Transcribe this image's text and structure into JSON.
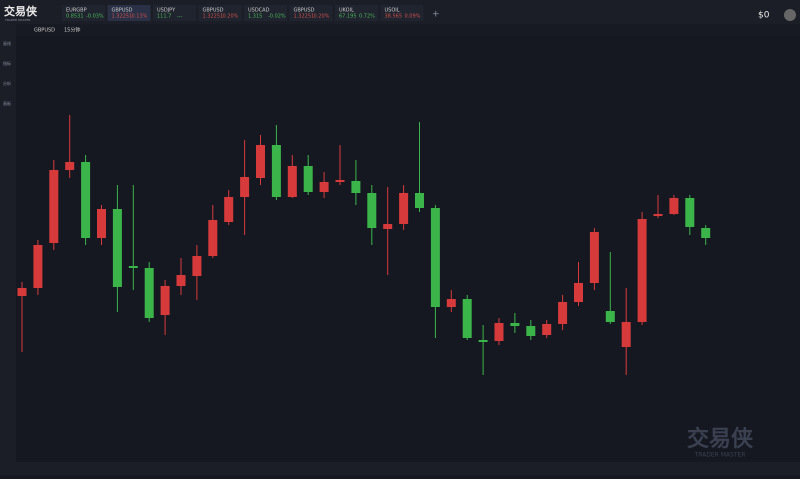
{
  "header": {
    "logo": "交易侠",
    "logo_sub": "TRADER MASTER",
    "balance": "$0",
    "tickers": [
      {
        "symbol": "EURGBP",
        "price": "0.8531",
        "change": "-0.03%"
      },
      {
        "symbol": "GBPUSD",
        "price": "1.32251",
        "change": "0.13%"
      },
      {
        "symbol": "USDJPY",
        "price": "111.7",
        "change": "---"
      },
      {
        "symbol": "GBPUSD",
        "price": "1.32251",
        "change": "0.20%"
      },
      {
        "symbol": "USDCAD",
        "price": "1.315",
        "change": "-0.02%"
      },
      {
        "symbol": "GBPUSD",
        "price": "1.32251",
        "change": "0.20%"
      },
      {
        "symbol": "UKOIL",
        "price": "67.195",
        "change": "0.72%"
      },
      {
        "symbol": "USOIL",
        "price": "38.565",
        "change": "0.09%"
      }
    ]
  },
  "sidebar": [
    "画线",
    "指标",
    "分析",
    "画板"
  ],
  "chart_data": {
    "type": "candlestick",
    "symbol": "GBPUSD",
    "timeframe": "15分钟",
    "up_color": "#d63a3a",
    "down_color": "#3bb54a",
    "ylim": [
      1.3215,
      1.33
    ],
    "open": [
      1.32468,
      1.32484,
      1.32574,
      1.3272,
      1.32736,
      1.32584,
      1.32642,
      1.32528,
      1.32524,
      1.3243,
      1.32488,
      1.32508,
      1.32548,
      1.32616,
      1.32666,
      1.32704,
      1.3277,
      1.32666,
      1.32728,
      1.32676,
      1.32696,
      1.32698,
      1.32674,
      1.32602,
      1.32612,
      1.32674,
      1.32644,
      1.32446,
      1.32462,
      1.3238,
      1.32378,
      1.32414,
      1.32408,
      1.3239,
      1.32412,
      1.32456,
      1.32494,
      1.32438,
      1.32366,
      1.32416,
      1.32628,
      1.32632,
      1.32664,
      1.32604
    ],
    "high": [
      1.32496,
      1.3258,
      1.3274,
      1.3283,
      1.3275,
      1.3265,
      1.3269,
      1.3269,
      1.32536,
      1.325,
      1.32544,
      1.3257,
      1.3265,
      1.3268,
      1.3278,
      1.3279,
      1.3281,
      1.3275,
      1.3275,
      1.32716,
      1.3277,
      1.3274,
      1.3269,
      1.32686,
      1.3269,
      1.32816,
      1.3265,
      1.3248,
      1.3247,
      1.3241,
      1.32424,
      1.32434,
      1.3242,
      1.3242,
      1.3247,
      1.32536,
      1.32604,
      1.32556,
      1.32484,
      1.32636,
      1.3267,
      1.3267,
      1.3267,
      1.3261
    ],
    "low": [
      1.32356,
      1.3247,
      1.3256,
      1.32704,
      1.3257,
      1.3257,
      1.32436,
      1.3248,
      1.32416,
      1.3239,
      1.3247,
      1.3246,
      1.32544,
      1.3261,
      1.3259,
      1.3269,
      1.3266,
      1.32664,
      1.3267,
      1.32664,
      1.3269,
      1.3265,
      1.3257,
      1.3251,
      1.326,
      1.32636,
      1.32384,
      1.32436,
      1.3238,
      1.3231,
      1.3237,
      1.32394,
      1.3238,
      1.32384,
      1.324,
      1.32448,
      1.3248,
      1.32412,
      1.3231,
      1.3241,
      1.32624,
      1.3263,
      1.3259,
      1.3257
    ],
    "close": [
      1.32484,
      1.3257,
      1.3272,
      1.32736,
      1.32584,
      1.32642,
      1.32486,
      1.32524,
      1.32424,
      1.32488,
      1.3251,
      1.32548,
      1.3262,
      1.32666,
      1.32706,
      1.3277,
      1.32666,
      1.32728,
      1.32676,
      1.32696,
      1.327,
      1.32674,
      1.32604,
      1.32612,
      1.32674,
      1.32644,
      1.32446,
      1.32462,
      1.32384,
      1.32376,
      1.32414,
      1.32408,
      1.32388,
      1.32412,
      1.32456,
      1.32494,
      1.32596,
      1.32416,
      1.32416,
      1.32622,
      1.32632,
      1.32664,
      1.32606,
      1.32584
    ]
  }
}
